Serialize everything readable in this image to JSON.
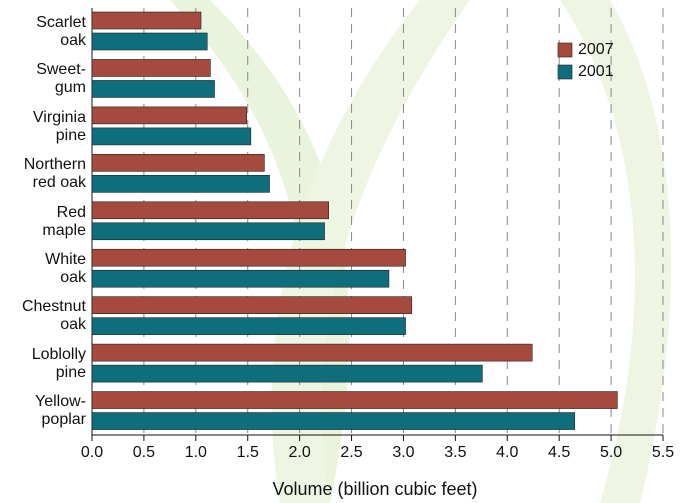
{
  "chart_data": {
    "type": "bar",
    "orientation": "horizontal",
    "x_label": "Volume (billion cubic feet)",
    "categories": [
      "Scarlet\noak",
      "Sweet-\ngum",
      "Virginia\npine",
      "Northern\nred oak",
      "Red\nmaple",
      "White\noak",
      "Chestnut\noak",
      "Loblolly\npine",
      "Yellow-\npoplar"
    ],
    "series": [
      {
        "name": "2007",
        "color": "#a54a3e",
        "values": [
          1.05,
          1.14,
          1.49,
          1.66,
          2.28,
          3.02,
          3.08,
          4.24,
          5.06
        ]
      },
      {
        "name": "2001",
        "color": "#0e6e7c",
        "values": [
          1.11,
          1.18,
          1.53,
          1.71,
          2.24,
          2.86,
          3.02,
          3.76,
          4.65
        ]
      }
    ],
    "xlim": [
      0,
      5.5
    ],
    "xticks": [
      {
        "value": 0,
        "label": "0.0"
      },
      0.5,
      {
        "value": 1,
        "label": "1.0"
      },
      1.5,
      {
        "value": 2,
        "label": "2.0"
      },
      2.5,
      {
        "value": 3,
        "label": "3.0"
      },
      3.5,
      {
        "value": 4,
        "label": "4.0"
      },
      4.5,
      {
        "value": 5,
        "label": "5.0"
      },
      5.5
    ],
    "grid": true,
    "legend": "upper right"
  }
}
